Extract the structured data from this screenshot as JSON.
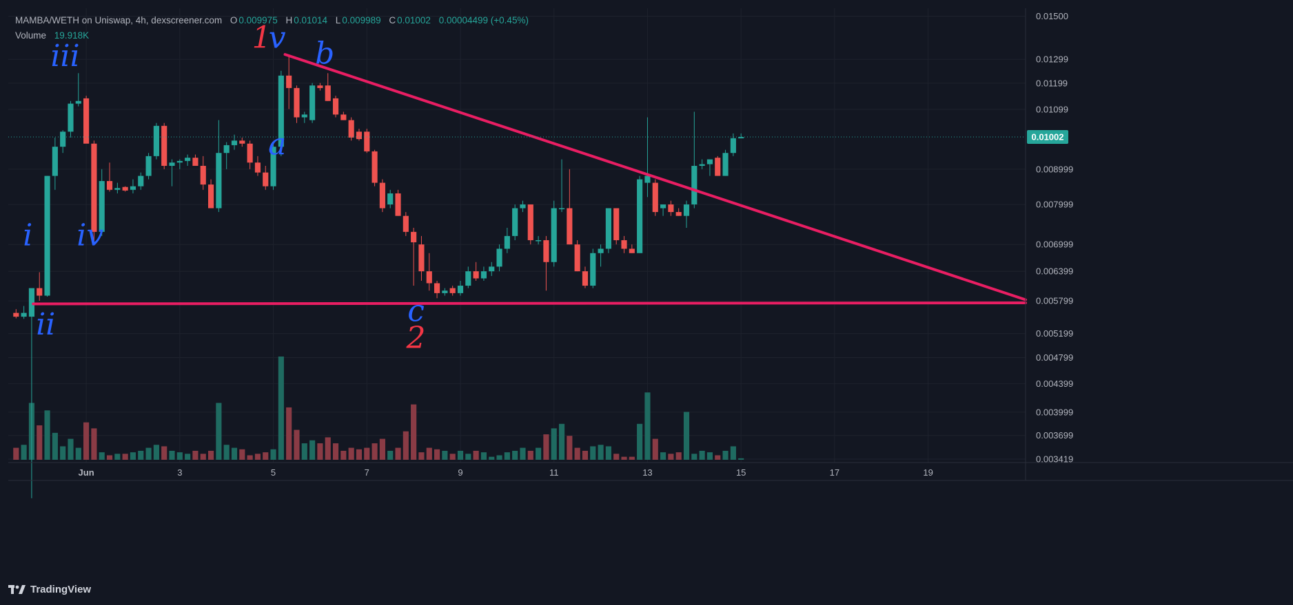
{
  "header": {
    "pair": "MAMBA/WETH on Uniswap, 4h, dexscreener.com",
    "open_label": "O",
    "open": "0.009975",
    "high_label": "H",
    "high": "0.01014",
    "low_label": "L",
    "low": "0.009989",
    "close_label": "C",
    "close": "0.01002",
    "change": "0.00004499 (+0.45%)",
    "volume_label": "Volume",
    "volume": "19.918K"
  },
  "brand": {
    "name": "TradingView"
  },
  "colors": {
    "background": "#131722",
    "up": "#26a69a",
    "down": "#ef5350",
    "trendline": "#e91e63",
    "wave_blue": "#2962ff",
    "wave_red": "#f23645"
  },
  "chart_data": {
    "type": "candlestick",
    "series": [
      {
        "name": "MAMBA/WETH",
        "candles": [
          {
            "t": 0,
            "o": 0.00557,
            "h": 0.00564,
            "l": 0.00547,
            "c": 0.0055
          },
          {
            "t": 1,
            "o": 0.0055,
            "h": 0.0057,
            "l": 0.00546,
            "c": 0.00557
          },
          {
            "t": 2,
            "o": 0.0055,
            "h": 0.006,
            "l": 0.003,
            "c": 0.00605
          },
          {
            "t": 3,
            "o": 0.00605,
            "h": 0.00638,
            "l": 0.0058,
            "c": 0.0059
          },
          {
            "t": 4,
            "o": 0.0059,
            "h": 0.0088,
            "l": 0.00588,
            "c": 0.0088
          },
          {
            "t": 5,
            "o": 0.0088,
            "h": 0.01,
            "l": 0.0084,
            "c": 0.0097
          },
          {
            "t": 6,
            "o": 0.0097,
            "h": 0.01025,
            "l": 0.0095,
            "c": 0.0102
          },
          {
            "t": 7,
            "o": 0.0102,
            "h": 0.0113,
            "l": 0.01,
            "c": 0.0112
          },
          {
            "t": 8,
            "o": 0.0112,
            "h": 0.0124,
            "l": 0.0111,
            "c": 0.0113
          },
          {
            "t": 9,
            "o": 0.0114,
            "h": 0.0115,
            "l": 0.0099,
            "c": 0.0098
          },
          {
            "t": 10,
            "o": 0.0098,
            "h": 0.0099,
            "l": 0.007,
            "c": 0.0073
          },
          {
            "t": 11,
            "o": 0.0073,
            "h": 0.009,
            "l": 0.0072,
            "c": 0.00865
          },
          {
            "t": 12,
            "o": 0.00865,
            "h": 0.0092,
            "l": 0.00835,
            "c": 0.0084
          },
          {
            "t": 13,
            "o": 0.0084,
            "h": 0.0086,
            "l": 0.0083,
            "c": 0.00845
          },
          {
            "t": 14,
            "o": 0.00848,
            "h": 0.0085,
            "l": 0.00835,
            "c": 0.00838
          },
          {
            "t": 15,
            "o": 0.0084,
            "h": 0.0087,
            "l": 0.0083,
            "c": 0.0085
          },
          {
            "t": 16,
            "o": 0.0085,
            "h": 0.0089,
            "l": 0.0084,
            "c": 0.0088
          },
          {
            "t": 17,
            "o": 0.0088,
            "h": 0.0095,
            "l": 0.0087,
            "c": 0.0094
          },
          {
            "t": 18,
            "o": 0.0094,
            "h": 0.0105,
            "l": 0.0093,
            "c": 0.0104
          },
          {
            "t": 19,
            "o": 0.0104,
            "h": 0.0105,
            "l": 0.009,
            "c": 0.0091
          },
          {
            "t": 20,
            "o": 0.0091,
            "h": 0.0093,
            "l": 0.0085,
            "c": 0.0092
          },
          {
            "t": 21,
            "o": 0.0092,
            "h": 0.0093,
            "l": 0.009,
            "c": 0.00925
          },
          {
            "t": 22,
            "o": 0.00925,
            "h": 0.00945,
            "l": 0.0091,
            "c": 0.00935
          },
          {
            "t": 23,
            "o": 0.00935,
            "h": 0.00945,
            "l": 0.0092,
            "c": 0.0091
          },
          {
            "t": 24,
            "o": 0.0091,
            "h": 0.0094,
            "l": 0.0084,
            "c": 0.00855
          },
          {
            "t": 25,
            "o": 0.00855,
            "h": 0.0087,
            "l": 0.0079,
            "c": 0.0079
          },
          {
            "t": 26,
            "o": 0.0079,
            "h": 0.0106,
            "l": 0.0078,
            "c": 0.0095
          },
          {
            "t": 27,
            "o": 0.0095,
            "h": 0.00985,
            "l": 0.009,
            "c": 0.00975
          },
          {
            "t": 28,
            "o": 0.00975,
            "h": 0.0101,
            "l": 0.0096,
            "c": 0.0099
          },
          {
            "t": 29,
            "o": 0.0099,
            "h": 0.01,
            "l": 0.0097,
            "c": 0.0098
          },
          {
            "t": 30,
            "o": 0.0098,
            "h": 0.0099,
            "l": 0.009,
            "c": 0.0092
          },
          {
            "t": 31,
            "o": 0.0092,
            "h": 0.0094,
            "l": 0.0088,
            "c": 0.0089
          },
          {
            "t": 32,
            "o": 0.0089,
            "h": 0.0091,
            "l": 0.0084,
            "c": 0.0085
          },
          {
            "t": 33,
            "o": 0.0085,
            "h": 0.0098,
            "l": 0.0084,
            "c": 0.0097
          },
          {
            "t": 34,
            "o": 0.0097,
            "h": 0.0125,
            "l": 0.0094,
            "c": 0.0123
          },
          {
            "t": 35,
            "o": 0.0123,
            "h": 0.0132,
            "l": 0.011,
            "c": 0.0118
          },
          {
            "t": 36,
            "o": 0.0118,
            "h": 0.0119,
            "l": 0.0105,
            "c": 0.0107
          },
          {
            "t": 37,
            "o": 0.0107,
            "h": 0.0109,
            "l": 0.0105,
            "c": 0.0108
          },
          {
            "t": 38,
            "o": 0.0106,
            "h": 0.012,
            "l": 0.0105,
            "c": 0.0119
          },
          {
            "t": 39,
            "o": 0.0119,
            "h": 0.012,
            "l": 0.0117,
            "c": 0.0118
          },
          {
            "t": 40,
            "o": 0.0119,
            "h": 0.0124,
            "l": 0.0113,
            "c": 0.0113
          },
          {
            "t": 41,
            "o": 0.0114,
            "h": 0.0115,
            "l": 0.0107,
            "c": 0.0108
          },
          {
            "t": 42,
            "o": 0.0108,
            "h": 0.0109,
            "l": 0.0106,
            "c": 0.0106
          },
          {
            "t": 43,
            "o": 0.0106,
            "h": 0.0107,
            "l": 0.0099,
            "c": 0.01
          },
          {
            "t": 44,
            "o": 0.0102,
            "h": 0.0103,
            "l": 0.0099,
            "c": 0.00995
          },
          {
            "t": 45,
            "o": 0.0102,
            "h": 0.0103,
            "l": 0.0095,
            "c": 0.00955
          },
          {
            "t": 46,
            "o": 0.00955,
            "h": 0.0096,
            "l": 0.0085,
            "c": 0.0086
          },
          {
            "t": 47,
            "o": 0.0086,
            "h": 0.0087,
            "l": 0.0078,
            "c": 0.0079
          },
          {
            "t": 48,
            "o": 0.008,
            "h": 0.0084,
            "l": 0.0079,
            "c": 0.0083
          },
          {
            "t": 49,
            "o": 0.0083,
            "h": 0.0084,
            "l": 0.0077,
            "c": 0.0077
          },
          {
            "t": 50,
            "o": 0.0077,
            "h": 0.0078,
            "l": 0.0072,
            "c": 0.0073
          },
          {
            "t": 51,
            "o": 0.0073,
            "h": 0.0074,
            "l": 0.0061,
            "c": 0.00705
          },
          {
            "t": 52,
            "o": 0.007,
            "h": 0.0072,
            "l": 0.0062,
            "c": 0.0064
          },
          {
            "t": 53,
            "o": 0.0064,
            "h": 0.0068,
            "l": 0.006,
            "c": 0.00615
          },
          {
            "t": 54,
            "o": 0.00615,
            "h": 0.0062,
            "l": 0.00585,
            "c": 0.00595
          },
          {
            "t": 55,
            "o": 0.00595,
            "h": 0.00605,
            "l": 0.0059,
            "c": 0.006
          },
          {
            "t": 56,
            "o": 0.00605,
            "h": 0.0061,
            "l": 0.0059,
            "c": 0.00595
          },
          {
            "t": 57,
            "o": 0.00595,
            "h": 0.0062,
            "l": 0.0059,
            "c": 0.0061
          },
          {
            "t": 58,
            "o": 0.0061,
            "h": 0.0065,
            "l": 0.00605,
            "c": 0.0064
          },
          {
            "t": 59,
            "o": 0.0064,
            "h": 0.0066,
            "l": 0.0062,
            "c": 0.00625
          },
          {
            "t": 60,
            "o": 0.00625,
            "h": 0.0065,
            "l": 0.0062,
            "c": 0.0064
          },
          {
            "t": 61,
            "o": 0.0064,
            "h": 0.0066,
            "l": 0.0063,
            "c": 0.0065
          },
          {
            "t": 62,
            "o": 0.0065,
            "h": 0.007,
            "l": 0.0064,
            "c": 0.0069
          },
          {
            "t": 63,
            "o": 0.0069,
            "h": 0.0074,
            "l": 0.0068,
            "c": 0.0072
          },
          {
            "t": 64,
            "o": 0.0072,
            "h": 0.008,
            "l": 0.0071,
            "c": 0.0079
          },
          {
            "t": 65,
            "o": 0.0079,
            "h": 0.0081,
            "l": 0.0078,
            "c": 0.008
          },
          {
            "t": 66,
            "o": 0.008,
            "h": 0.008,
            "l": 0.007,
            "c": 0.0071
          },
          {
            "t": 67,
            "o": 0.0071,
            "h": 0.0072,
            "l": 0.007,
            "c": 0.0071
          },
          {
            "t": 68,
            "o": 0.0071,
            "h": 0.0072,
            "l": 0.006,
            "c": 0.0066
          },
          {
            "t": 69,
            "o": 0.0066,
            "h": 0.0081,
            "l": 0.0065,
            "c": 0.0079
          },
          {
            "t": 70,
            "o": 0.0079,
            "h": 0.0093,
            "l": 0.0078,
            "c": 0.0079
          },
          {
            "t": 71,
            "o": 0.0079,
            "h": 0.009,
            "l": 0.007,
            "c": 0.007
          },
          {
            "t": 72,
            "o": 0.007,
            "h": 0.0071,
            "l": 0.0064,
            "c": 0.0064
          },
          {
            "t": 73,
            "o": 0.0064,
            "h": 0.0065,
            "l": 0.00605,
            "c": 0.0061
          },
          {
            "t": 74,
            "o": 0.0061,
            "h": 0.0069,
            "l": 0.00605,
            "c": 0.0068
          },
          {
            "t": 75,
            "o": 0.0068,
            "h": 0.007,
            "l": 0.0065,
            "c": 0.0069
          },
          {
            "t": 76,
            "o": 0.0069,
            "h": 0.0079,
            "l": 0.0068,
            "c": 0.0079
          },
          {
            "t": 77,
            "o": 0.0079,
            "h": 0.0079,
            "l": 0.007,
            "c": 0.0071
          },
          {
            "t": 78,
            "o": 0.0071,
            "h": 0.0072,
            "l": 0.0068,
            "c": 0.0069
          },
          {
            "t": 79,
            "o": 0.0069,
            "h": 0.007,
            "l": 0.0068,
            "c": 0.0068
          },
          {
            "t": 80,
            "o": 0.0068,
            "h": 0.0088,
            "l": 0.0068,
            "c": 0.0087
          },
          {
            "t": 81,
            "o": 0.0086,
            "h": 0.0107,
            "l": 0.0082,
            "c": 0.0088
          },
          {
            "t": 82,
            "o": 0.0086,
            "h": 0.0087,
            "l": 0.0077,
            "c": 0.0078
          },
          {
            "t": 83,
            "o": 0.0079,
            "h": 0.008,
            "l": 0.0077,
            "c": 0.008
          },
          {
            "t": 84,
            "o": 0.008,
            "h": 0.0081,
            "l": 0.0077,
            "c": 0.0078
          },
          {
            "t": 85,
            "o": 0.0078,
            "h": 0.0079,
            "l": 0.0077,
            "c": 0.0077
          },
          {
            "t": 86,
            "o": 0.0077,
            "h": 0.0081,
            "l": 0.0074,
            "c": 0.008
          },
          {
            "t": 87,
            "o": 0.008,
            "h": 0.0109,
            "l": 0.0079,
            "c": 0.0091
          },
          {
            "t": 88,
            "o": 0.0091,
            "h": 0.0093,
            "l": 0.009,
            "c": 0.00915
          },
          {
            "t": 89,
            "o": 0.00915,
            "h": 0.0093,
            "l": 0.0088,
            "c": 0.0093
          },
          {
            "t": 90,
            "o": 0.00935,
            "h": 0.0094,
            "l": 0.0088,
            "c": 0.0088
          },
          {
            "t": 91,
            "o": 0.0088,
            "h": 0.0096,
            "l": 0.0088,
            "c": 0.0095
          },
          {
            "t": 92,
            "o": 0.0095,
            "h": 0.01014,
            "l": 0.0094,
            "c": 0.00998
          },
          {
            "t": 93,
            "o": 0.009975,
            "h": 0.01014,
            "l": 0.009989,
            "c": 0.01002
          }
        ],
        "volume": [
          80,
          100,
          380,
          230,
          330,
          180,
          90,
          140,
          80,
          250,
          210,
          50,
          30,
          40,
          40,
          50,
          60,
          80,
          100,
          90,
          60,
          50,
          40,
          60,
          40,
          60,
          380,
          100,
          80,
          70,
          30,
          40,
          50,
          70,
          690,
          350,
          200,
          110,
          130,
          110,
          150,
          110,
          60,
          80,
          70,
          80,
          110,
          140,
          60,
          80,
          190,
          370,
          50,
          80,
          70,
          60,
          40,
          60,
          40,
          60,
          50,
          20,
          30,
          50,
          60,
          80,
          60,
          80,
          170,
          210,
          240,
          160,
          80,
          60,
          90,
          100,
          90,
          40,
          20,
          20,
          240,
          450,
          140,
          50,
          40,
          50,
          320,
          40,
          60,
          50,
          30,
          60,
          90,
          10
        ]
      }
    ],
    "x_axis": {
      "ticks": [
        {
          "t": 9,
          "label": "Jun"
        },
        {
          "t": 21,
          "label": "3"
        },
        {
          "t": 33,
          "label": "5"
        },
        {
          "t": 45,
          "label": "7"
        },
        {
          "t": 57,
          "label": "9"
        },
        {
          "t": 69,
          "label": "11"
        },
        {
          "t": 81,
          "label": "13"
        },
        {
          "t": 93,
          "label": "15"
        },
        {
          "t": 105,
          "label": "17"
        },
        {
          "t": 117,
          "label": "19"
        }
      ],
      "range": [
        -1,
        129.5
      ]
    },
    "y_axis": {
      "scale": "log",
      "range": [
        0.00338,
        0.0154
      ],
      "ticks": [
        "0.01500",
        "0.01299",
        "0.01199",
        "0.01099",
        "0.008999",
        "0.007999",
        "0.006999",
        "0.006399",
        "0.005799",
        "0.005199",
        "0.004799",
        "0.004399",
        "0.003999",
        "0.003699",
        "0.003419"
      ],
      "last_price_label": "0.01002",
      "last_price": 0.01002
    },
    "trendlines": [
      {
        "name": "descending-resistance",
        "from": {
          "t": 34.5,
          "p": 0.0132
        },
        "to": {
          "t": 129.5,
          "p": 0.00582
        }
      },
      {
        "name": "horizontal-support",
        "from": {
          "t": 2.2,
          "p": 0.00574
        },
        "to": {
          "t": 129.5,
          "p": 0.00576
        }
      }
    ],
    "wave_labels": [
      {
        "text": "i",
        "t": 1.5,
        "p": 0.00698,
        "color": "blue"
      },
      {
        "text": "ii",
        "t": 3.8,
        "p": 0.00518,
        "color": "blue"
      },
      {
        "text": "iii",
        "t": 6.3,
        "p": 0.0127,
        "color": "blue"
      },
      {
        "text": "iv",
        "t": 9.5,
        "p": 0.00698,
        "color": "blue"
      },
      {
        "text": "1",
        "t": 31.5,
        "p": 0.0135,
        "color": "red"
      },
      {
        "text": "v",
        "t": 33.5,
        "p": 0.0135,
        "color": "blue"
      },
      {
        "text": "a",
        "t": 33.5,
        "p": 0.00945,
        "color": "blue"
      },
      {
        "text": "b",
        "t": 39.6,
        "p": 0.0128,
        "color": "blue"
      },
      {
        "text": "c",
        "t": 51.3,
        "p": 0.00542,
        "color": "blue"
      },
      {
        "text": "2",
        "t": 51.3,
        "p": 0.00495,
        "color": "red"
      }
    ]
  }
}
